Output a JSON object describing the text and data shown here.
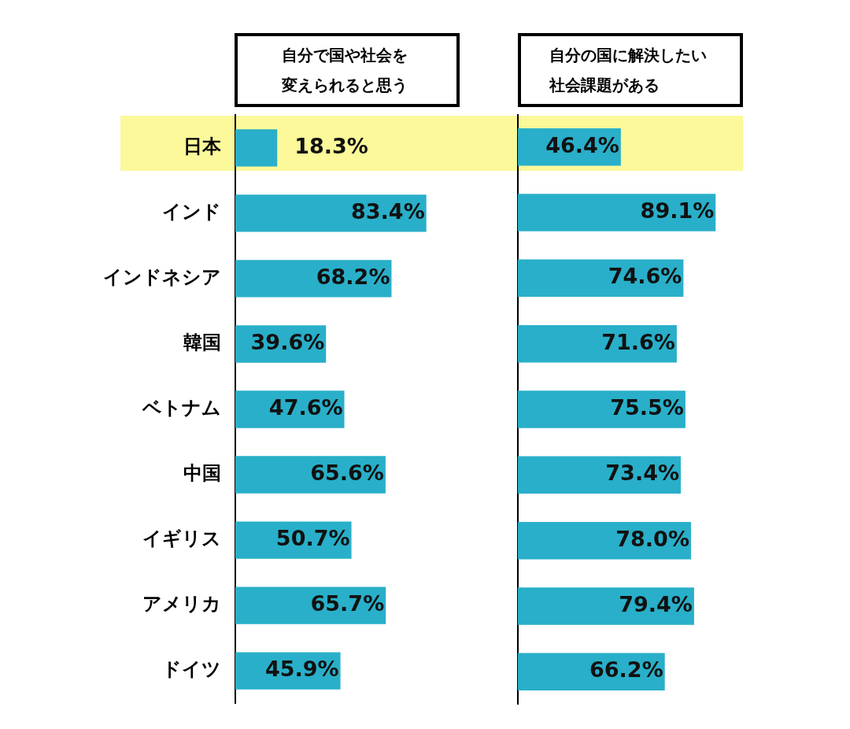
{
  "chart_data": [
    {
      "type": "bar",
      "orientation": "horizontal",
      "title": "自分で国や社会を変えられると思う",
      "categories": [
        "日本",
        "インド",
        "インドネシア",
        "韓国",
        "ベトナム",
        "中国",
        "イギリス",
        "アメリカ",
        "ドイツ"
      ],
      "values": [
        18.3,
        83.4,
        68.2,
        39.6,
        47.6,
        65.6,
        50.7,
        65.7,
        45.9
      ],
      "color": "#29afc9",
      "value_labels": [
        "18.3%",
        "83.4%",
        "68.2%",
        "39.6%",
        "47.6%",
        "65.6%",
        "50.7%",
        "65.7%",
        "45.9%"
      ],
      "tick_labels": "y"
    },
    {
      "type": "bar",
      "orientation": "horizontal",
      "title": "自分の国に解決したい社会課題がある",
      "categories": [
        null,
        null,
        null,
        null,
        null,
        null,
        null,
        null,
        null
      ],
      "values": [
        46.4,
        89.1,
        74.6,
        71.6,
        75.5,
        73.4,
        78.0,
        79.4,
        66.2
      ],
      "color": "#29afc9",
      "value_labels": [
        "46.4%",
        "89.1%",
        "74.6%",
        "71.6%",
        "75.5%",
        "73.4%",
        "78.0%",
        "79.4%",
        "66.2%"
      ],
      "tick_labels": false
    }
  ]
}
